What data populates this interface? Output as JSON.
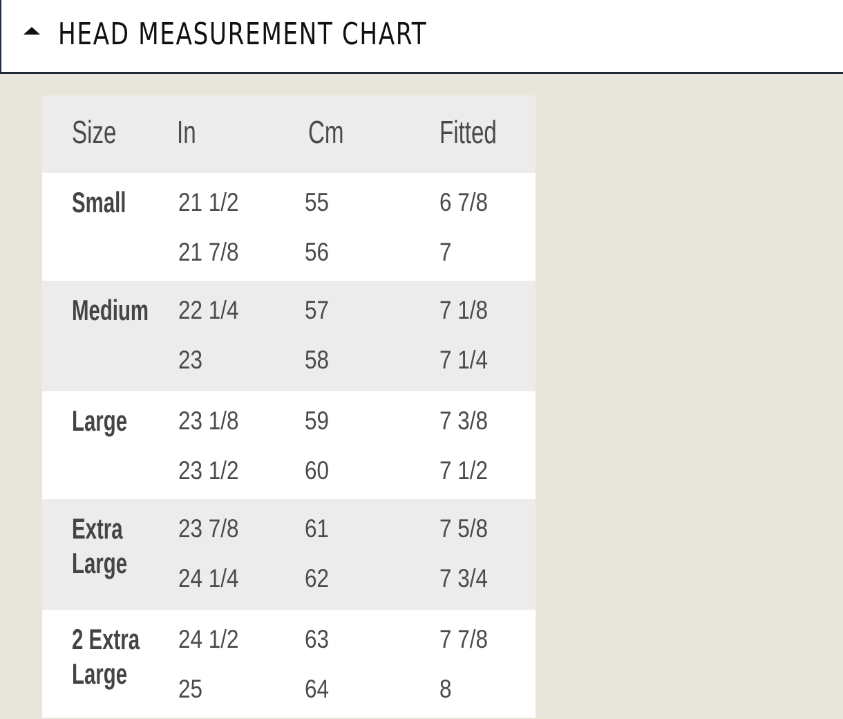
{
  "section": {
    "title": "HEAD MEASUREMENT CHART",
    "icon": "caret-up-icon",
    "expanded": true
  },
  "table": {
    "headers": [
      "Size",
      "In",
      "Cm",
      "Fitted"
    ],
    "groups": [
      {
        "size": "Small",
        "rows": [
          [
            "21 1/2",
            "55",
            "6 7/8"
          ],
          [
            "21 7/8",
            "56",
            "7"
          ]
        ]
      },
      {
        "size": "Medium",
        "rows": [
          [
            "22 1/4",
            "57",
            "7 1/8"
          ],
          [
            "23",
            "58",
            "7 1/4"
          ]
        ]
      },
      {
        "size": "Large",
        "rows": [
          [
            "23 1/8",
            "59",
            "7 3/8"
          ],
          [
            "23 1/2",
            "60",
            "7 1/2"
          ]
        ]
      },
      {
        "size": "Extra Large",
        "rows": [
          [
            "23 7/8",
            "61",
            "7 5/8"
          ],
          [
            "24 1/4",
            "62",
            "7 3/4"
          ]
        ]
      },
      {
        "size": "2 Extra Large",
        "rows": [
          [
            "24 1/2",
            "63",
            "7 7/8"
          ],
          [
            "25",
            "64",
            "8"
          ]
        ]
      }
    ]
  }
}
